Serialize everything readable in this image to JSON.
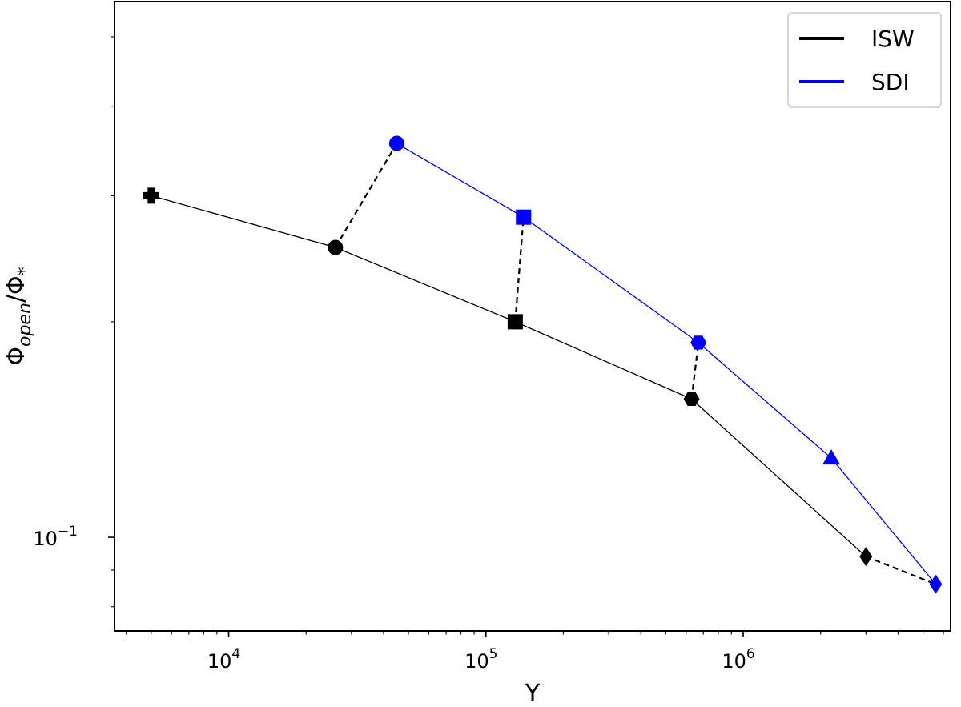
{
  "chart_data": {
    "type": "scatter",
    "title": "",
    "xlabel": "Y",
    "ylabel_base": "Φ",
    "ylabel_sub": "open",
    "ylabel_mid": "/Φ",
    "ylabel_sub2": "*",
    "xscale": "log",
    "yscale": "log",
    "xlim": [
      3600,
      6400000
    ],
    "ylim": [
      0.074,
      0.56
    ],
    "grid": false,
    "legend_position": "top-right",
    "x_ticks": [
      {
        "value": 10000,
        "base": "10",
        "exp": "4"
      },
      {
        "value": 100000,
        "base": "10",
        "exp": "5"
      },
      {
        "value": 1000000,
        "base": "10",
        "exp": "6"
      }
    ],
    "y_ticks": [
      {
        "value": 0.1,
        "base": "10",
        "exp": "−1"
      }
    ],
    "colors": {
      "ISW": "#000000",
      "SDI": "#0000ff"
    },
    "series": [
      {
        "name": "ISW",
        "color": "#000000",
        "points": [
          {
            "x": 5000,
            "y": 0.3,
            "marker": "plus"
          },
          {
            "x": 26000,
            "y": 0.254,
            "marker": "circle"
          },
          {
            "x": 130000,
            "y": 0.2,
            "marker": "square"
          },
          {
            "x": 630000,
            "y": 0.156,
            "marker": "hexagon"
          },
          {
            "x": 3000000,
            "y": 0.094,
            "marker": "diamond"
          }
        ]
      },
      {
        "name": "SDI",
        "color": "#0000ff",
        "points": [
          {
            "x": 45000,
            "y": 0.355,
            "marker": "circle"
          },
          {
            "x": 140000,
            "y": 0.28,
            "marker": "square"
          },
          {
            "x": 670000,
            "y": 0.187,
            "marker": "hexagon"
          },
          {
            "x": 2200000,
            "y": 0.129,
            "marker": "triangle"
          },
          {
            "x": 5600000,
            "y": 0.086,
            "marker": "diamond"
          }
        ]
      }
    ],
    "connectors": [
      {
        "from": {
          "x": 26000,
          "y": 0.254
        },
        "to": {
          "x": 45000,
          "y": 0.355
        }
      },
      {
        "from": {
          "x": 130000,
          "y": 0.2
        },
        "to": {
          "x": 140000,
          "y": 0.28
        }
      },
      {
        "from": {
          "x": 630000,
          "y": 0.156
        },
        "to": {
          "x": 670000,
          "y": 0.187
        }
      },
      {
        "from": {
          "x": 3000000,
          "y": 0.094
        },
        "to": {
          "x": 5600000,
          "y": 0.086
        }
      }
    ]
  }
}
